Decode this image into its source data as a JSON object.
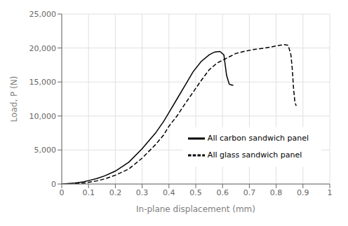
{
  "chart_data": {
    "type": "line",
    "xlabel": "In-plane displacement (mm)",
    "ylabel": "Load, P (N)",
    "xlim": [
      0,
      1
    ],
    "ylim": [
      0,
      25000
    ],
    "xticks": [
      0,
      0.1,
      0.2,
      0.3,
      0.4,
      0.5,
      0.6,
      0.7,
      0.8,
      0.9,
      1
    ],
    "yticks": [
      0,
      {
        "value": 5000,
        "label": "5,000"
      },
      {
        "value": 10000,
        "label": "10,000"
      },
      {
        "value": 15000,
        "label": "15,000"
      },
      {
        "value": 20000,
        "label": "20,000"
      },
      {
        "value": 25000,
        "label": "25,000"
      }
    ],
    "grid": true,
    "legend": "lower right",
    "series": [
      {
        "name": "All carbon sandwich panel",
        "color": "#000000",
        "line_style": "solid",
        "x": [
          0.0,
          0.02,
          0.05,
          0.08,
          0.1,
          0.13,
          0.16,
          0.2,
          0.25,
          0.3,
          0.35,
          0.38,
          0.4,
          0.43,
          0.46,
          0.49,
          0.52,
          0.55,
          0.57,
          0.59,
          0.605,
          0.615,
          0.625,
          0.63,
          0.64
        ],
        "values": [
          0,
          50,
          150,
          300,
          500,
          800,
          1200,
          1900,
          3200,
          5200,
          7500,
          9200,
          10500,
          12500,
          14500,
          16500,
          18000,
          19000,
          19400,
          19500,
          19000,
          16000,
          14700,
          14600,
          14500
        ]
      },
      {
        "name": "All glass sandwich panel",
        "color": "#000000",
        "line_style": "dashed",
        "x": [
          0.05,
          0.08,
          0.1,
          0.13,
          0.16,
          0.2,
          0.25,
          0.3,
          0.35,
          0.38,
          0.4,
          0.43,
          0.46,
          0.49,
          0.52,
          0.55,
          0.58,
          0.6,
          0.63,
          0.65,
          0.68,
          0.72,
          0.76,
          0.8,
          0.83,
          0.845,
          0.855,
          0.86,
          0.865,
          0.87,
          0.875
        ],
        "values": [
          50,
          120,
          250,
          450,
          750,
          1300,
          2200,
          3800,
          5800,
          7200,
          8500,
          10000,
          11800,
          13500,
          15200,
          16800,
          17800,
          18200,
          18800,
          19200,
          19500,
          19800,
          20000,
          20300,
          20500,
          20400,
          19000,
          17000,
          14000,
          12000,
          11500
        ]
      }
    ]
  }
}
